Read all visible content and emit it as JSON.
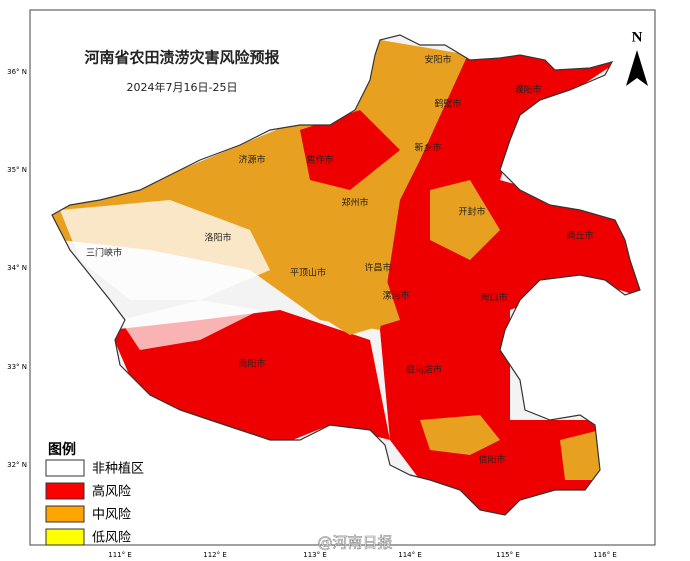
{
  "title": "河南省农田渍涝灾害风险预报",
  "date": "2024年7月16日-25日",
  "north": "N",
  "lat_labels": [
    "36° N",
    "35° N",
    "34° N",
    "33° N",
    "32° N"
  ],
  "lon_labels": [
    "111° E",
    "112° E",
    "113° E",
    "114° E",
    "115° E",
    "116° E"
  ],
  "cities": [
    "安阳市",
    "鹤壁市",
    "濮阳市",
    "新乡市",
    "焦作市",
    "济源市",
    "郑州市",
    "开封市",
    "商丘市",
    "洛阳市",
    "三门峡市",
    "平顶山市",
    "许昌市",
    "漯河市",
    "周口市",
    "南阳市",
    "驻马店市",
    "信阳市"
  ],
  "legend": {
    "title": "图例",
    "items": [
      {
        "label": "非种植区",
        "color": "#ffffff"
      },
      {
        "label": "高风险",
        "color": "#ff0000"
      },
      {
        "label": "中风险",
        "color": "#ffa500"
      },
      {
        "label": "低风险",
        "color": "#ffff00"
      }
    ]
  },
  "watermark": "@河南日报"
}
